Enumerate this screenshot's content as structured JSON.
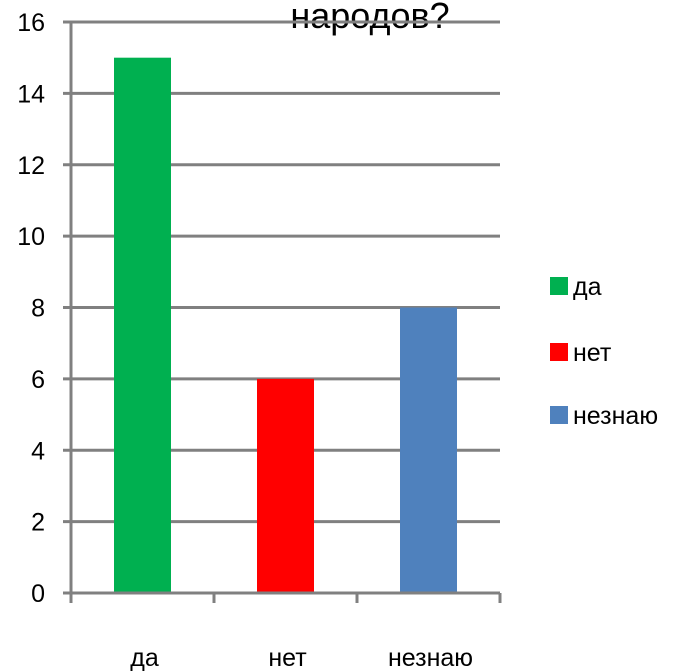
{
  "chart_data": {
    "type": "bar",
    "title": "народов?",
    "categories": [
      "да",
      "нет",
      "незнаю"
    ],
    "values": [
      15,
      6,
      8
    ],
    "colors": [
      "#00b050",
      "#ff0000",
      "#4f81bd"
    ],
    "ylim": [
      0,
      16
    ],
    "yticks": [
      0,
      2,
      4,
      6,
      8,
      10,
      12,
      14,
      16
    ],
    "grid": true,
    "legend": {
      "position": "right",
      "entries": [
        {
          "label": "да",
          "color": "#00b050"
        },
        {
          "label": "нет",
          "color": "#ff0000"
        },
        {
          "label": "незнаю",
          "color": "#4f81bd"
        }
      ]
    }
  }
}
